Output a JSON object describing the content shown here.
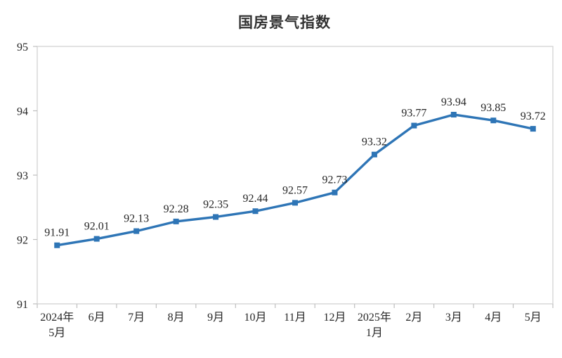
{
  "chart_data": {
    "type": "line",
    "title": "国房景气指数",
    "categories": [
      "2024年\n5月",
      "6月",
      "7月",
      "8月",
      "9月",
      "10月",
      "11月",
      "12月",
      "2025年\n1月",
      "2月",
      "3月",
      "4月",
      "5月"
    ],
    "values": [
      91.91,
      92.01,
      92.13,
      92.28,
      92.35,
      92.44,
      92.57,
      92.73,
      93.32,
      93.77,
      93.94,
      93.85,
      93.72
    ],
    "data_labels": [
      "91.91",
      "92.01",
      "92.13",
      "92.28",
      "92.35",
      "92.44",
      "92.57",
      "92.73",
      "93.32",
      "93.77",
      "93.94",
      "93.85",
      "93.72"
    ],
    "ylabel": "",
    "xlabel": "",
    "ylim": [
      91,
      95
    ],
    "yticks": [
      "91",
      "92",
      "93",
      "94",
      "95"
    ],
    "grid": false,
    "legend": "none",
    "marker": "square",
    "colors": {
      "series": "#2E75B6",
      "text": "#262626",
      "frame": "#D9D9D9",
      "tick": "#BFBFBF",
      "background": "#ffffff"
    }
  }
}
